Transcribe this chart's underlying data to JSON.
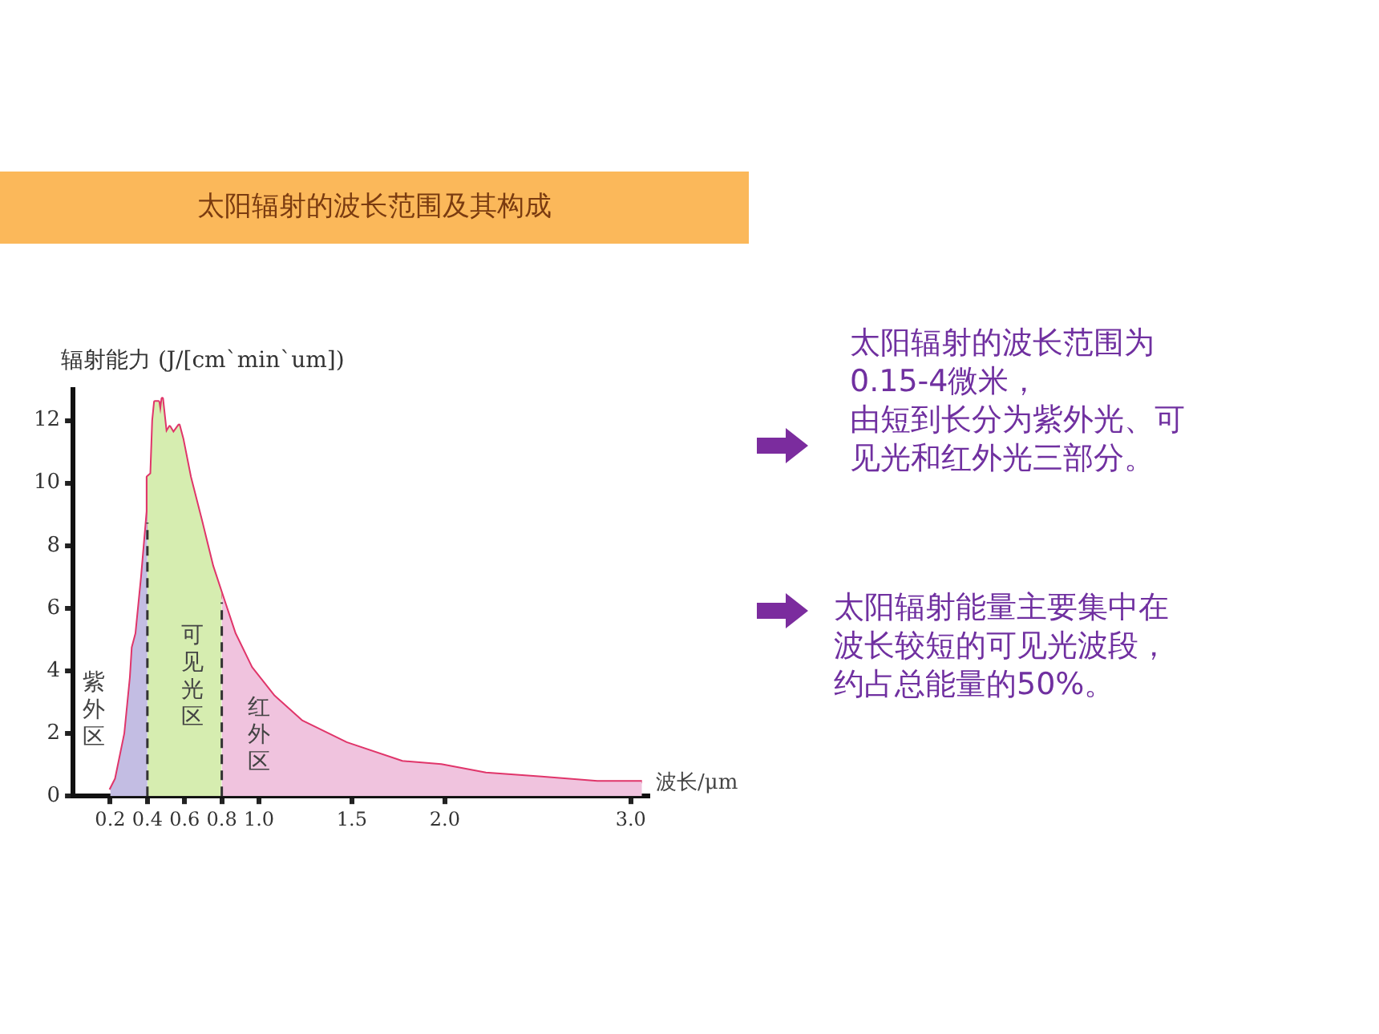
{
  "chart_data": {
    "type": "line",
    "title": "太阳辐射的波长范围及其构成",
    "ylabel": "辐射能力 (J/[cm`min`um])",
    "xlabel": "波长/μm",
    "x": [
      0.2,
      0.23,
      0.28,
      0.31,
      0.32,
      0.34,
      0.37,
      0.4,
      0.4,
      0.42,
      0.43,
      0.44,
      0.46,
      0.47,
      0.48,
      0.5,
      0.52,
      0.54,
      0.57,
      0.59,
      0.63,
      0.69,
      0.75,
      0.8,
      0.87,
      0.96,
      1.08,
      1.23,
      1.47,
      1.77,
      1.98,
      2.22,
      2.52,
      2.82,
      3.06
    ],
    "series": [
      {
        "type": "area",
        "name": "紫外区",
        "color": "#c3bde3",
        "x": [
          0.2,
          0.23,
          0.28,
          0.31,
          0.32,
          0.34,
          0.37,
          0.4
        ],
        "values": [
          0.2,
          0.55,
          2.0,
          3.8,
          4.75,
          5.2,
          7.0,
          9.1
        ]
      },
      {
        "type": "area",
        "name": "可见光区",
        "color": "#d6edb0",
        "x": [
          0.4,
          0.4,
          0.42,
          0.43,
          0.44,
          0.46,
          0.47,
          0.48,
          0.5,
          0.52,
          0.54,
          0.57,
          0.59,
          0.63,
          0.69,
          0.75,
          0.8
        ],
        "values": [
          9.1,
          10.2,
          10.3,
          12.0,
          12.6,
          12.6,
          12.2,
          12.7,
          11.6,
          11.8,
          11.6,
          11.85,
          11.4,
          10.2,
          8.8,
          7.35,
          6.45
        ]
      },
      {
        "type": "area",
        "name": "红外区",
        "color": "#f0c3de",
        "x": [
          0.8,
          0.87,
          0.96,
          1.08,
          1.23,
          1.47,
          1.77,
          1.98,
          2.22,
          2.52,
          2.82,
          3.06
        ],
        "values": [
          6.45,
          5.2,
          4.1,
          3.2,
          2.4,
          1.7,
          1.1,
          1.0,
          0.73,
          0.6,
          0.46,
          0.46
        ]
      },
      {
        "color": "#e0356a",
        "values": [
          0.2,
          0.55,
          2.0,
          3.8,
          4.75,
          5.2,
          7.0,
          9.1,
          10.2,
          10.3,
          12.0,
          12.6,
          12.6,
          12.2,
          12.7,
          11.6,
          11.8,
          11.6,
          11.85,
          11.4,
          10.2,
          8.8,
          7.35,
          6.45,
          5.2,
          4.1,
          3.2,
          2.4,
          1.7,
          1.1,
          1.0,
          0.73,
          0.6,
          0.46,
          0.46
        ]
      }
    ],
    "xlim": [
      0,
      3.1
    ],
    "xticks": [
      0.2,
      0.4,
      0.6,
      0.8,
      {
        "value": 1,
        "label": "1.0"
      },
      1.5,
      {
        "value": 2,
        "label": "2.0"
      },
      {
        "value": 3,
        "label": "3.0"
      }
    ],
    "ylim": [
      0,
      13
    ],
    "yticks": [
      0,
      2,
      4,
      6,
      8,
      10,
      12
    ],
    "ref_lines": [
      {
        "axis": "x",
        "value": 0.4,
        "line_style": "dashed"
      },
      {
        "axis": "x",
        "value": 0.8,
        "line_style": "dashed"
      }
    ],
    "annotations": [
      "太阳辐射的波长范围为0.15-4微米，",
      "由短到长分为紫外光、可见光和红外光三部分。",
      "太阳辐射能量主要集中在波长较短的可见光波段，约占总能量的50%。"
    ],
    "grid": false,
    "legend": false,
    "marker": "none",
    "line_style": "solid"
  }
}
